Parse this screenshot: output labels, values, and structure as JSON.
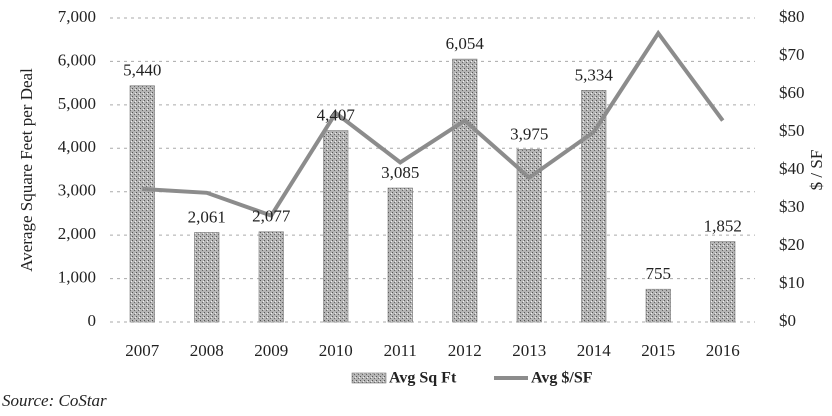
{
  "chart_data": {
    "type": "bar",
    "y_label": "Average Square Feet per Deal",
    "y2_label": "$ / SF",
    "source": "Source: CoStar",
    "categories": [
      "2007",
      "2008",
      "2009",
      "2010",
      "2011",
      "2012",
      "2013",
      "2014",
      "2015",
      "2016"
    ],
    "series": [
      {
        "name": "Avg Sq Ft",
        "type": "bar",
        "color": "#9a9a9a",
        "axis": "y",
        "values": [
          5440,
          2061,
          2077,
          4407,
          3085,
          6054,
          3975,
          5334,
          755,
          1852
        ],
        "value_labels": [
          "5,440",
          "2,061",
          "2,077",
          "4,407",
          "3,085",
          "6,054",
          "3,975",
          "5,334",
          "755",
          "1,852"
        ]
      },
      {
        "name": "Avg $/SF",
        "type": "line",
        "color": "#8c8c8c",
        "axis": "y2",
        "values": [
          35,
          34,
          28,
          55,
          42,
          53,
          38,
          50,
          76,
          53
        ]
      }
    ],
    "ylim": [
      0,
      7000
    ],
    "yticks": [
      0,
      {
        "value": 1000,
        "label": "1,000"
      },
      {
        "value": 2000,
        "label": "2,000"
      },
      {
        "value": 3000,
        "label": "3,000"
      },
      {
        "value": 4000,
        "label": "4,000"
      },
      {
        "value": 5000,
        "label": "5,000"
      },
      {
        "value": 6000,
        "label": "6,000"
      },
      {
        "value": 7000,
        "label": "7,000"
      }
    ],
    "y2lim": [
      0,
      80
    ],
    "y2ticks": [
      {
        "value": 0,
        "label": "$0"
      },
      {
        "value": 10,
        "label": "$10"
      },
      {
        "value": 20,
        "label": "$20"
      },
      {
        "value": 30,
        "label": "$30"
      },
      {
        "value": 40,
        "label": "$40"
      },
      {
        "value": 50,
        "label": "$50"
      },
      {
        "value": 60,
        "label": "$60"
      },
      {
        "value": 70,
        "label": "$70"
      },
      {
        "value": 80,
        "label": "$80"
      }
    ],
    "grid": true
  }
}
